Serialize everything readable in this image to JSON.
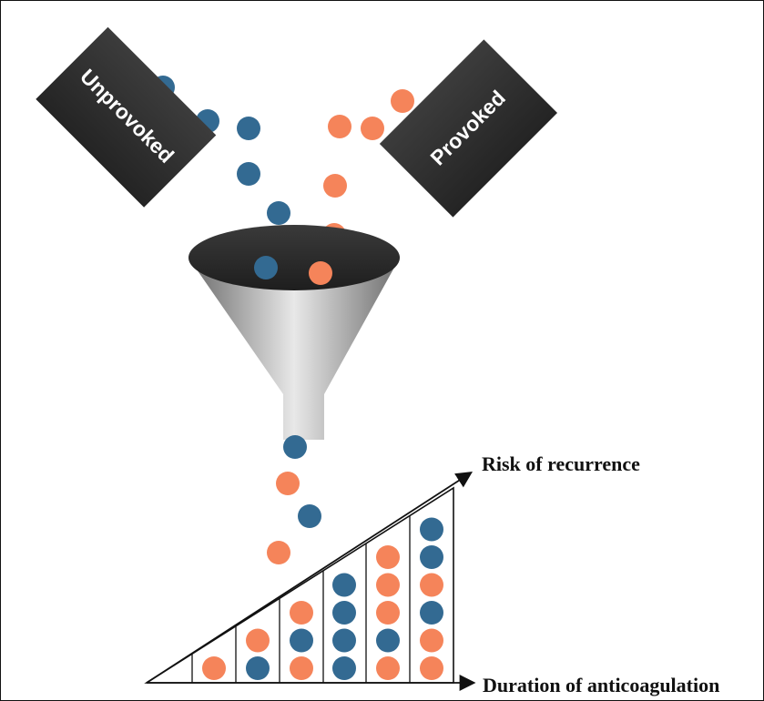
{
  "labels": {
    "unprovoked": "Unprovoked",
    "provoked": "Provoked",
    "risk_axis": "Risk of recurrence",
    "duration_axis": "Duration of anticoagulation"
  },
  "colors": {
    "blue": "#336a92",
    "orange": "#f5845a",
    "box": "#2b2b2b",
    "ink": "#111111"
  },
  "grid_columns": [
    [
      "orange"
    ],
    [
      "blue",
      "orange"
    ],
    [
      "orange",
      "blue",
      "orange"
    ],
    [
      "blue",
      "blue",
      "blue",
      "blue"
    ],
    [
      "orange",
      "blue",
      "orange",
      "orange",
      "orange"
    ],
    [
      "orange",
      "orange",
      "blue",
      "orange",
      "blue",
      "blue"
    ]
  ]
}
